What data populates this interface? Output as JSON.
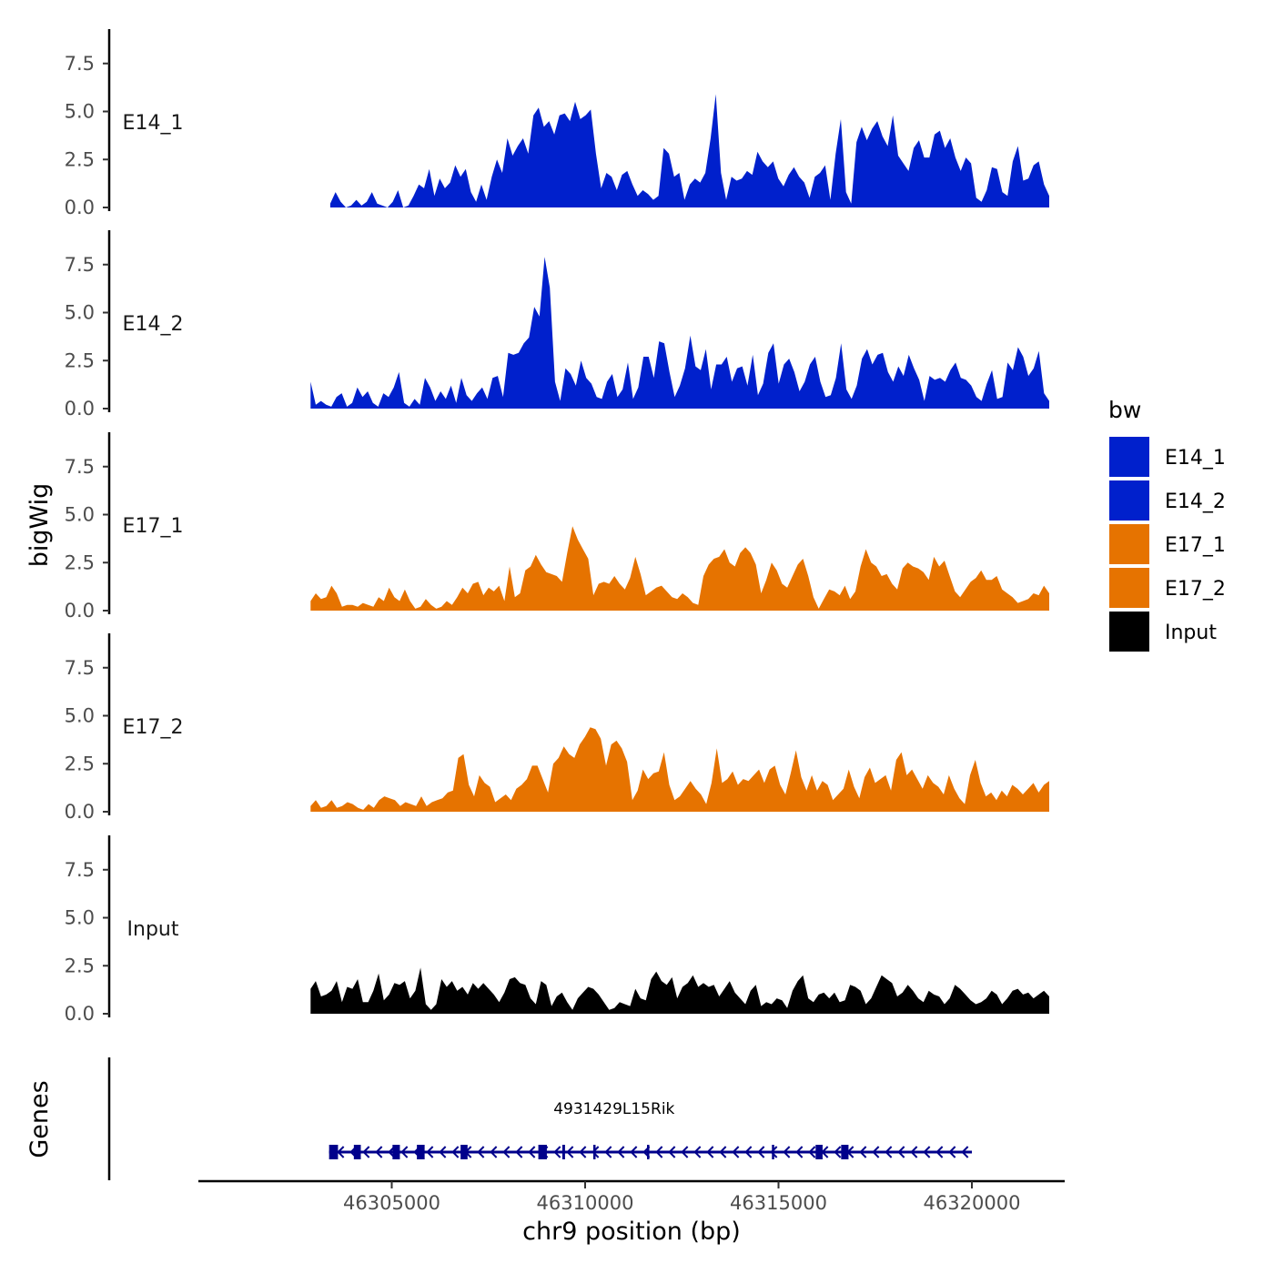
{
  "chart_data": {
    "type": "area",
    "ylabel": "bigWig",
    "xlabel": "chr9 position (bp)",
    "ylim": [
      0,
      9.4
    ],
    "y_ticks": [
      "0.0",
      "2.5",
      "5.0",
      "7.5"
    ],
    "x_ticks": [
      "46305000",
      "46310000",
      "46315000",
      "46320000"
    ],
    "x_tick_values": [
      46305000,
      46310000,
      46315000,
      46320000
    ],
    "xlim": [
      46300000,
      46322400
    ],
    "genes_label": "Genes",
    "legend": {
      "title": "bw",
      "entries": [
        {
          "label": "E14_1",
          "color": "#0020CC"
        },
        {
          "label": "E14_2",
          "color": "#0020CC"
        },
        {
          "label": "E17_1",
          "color": "#E67300"
        },
        {
          "label": "E17_2",
          "color": "#E67300"
        },
        {
          "label": "Input",
          "color": "#000000"
        }
      ]
    },
    "series": [
      {
        "name": "E14_1",
        "color": "#0020CC",
        "start": 46303410,
        "end": 46322000,
        "values": [
          0.2,
          0.8,
          0.3,
          0,
          0.1,
          0.4,
          0.1,
          0.3,
          0.8,
          0.2,
          0.1,
          0,
          0.3,
          0.9,
          0,
          0.1,
          0.6,
          1.2,
          1.0,
          2.0,
          0.6,
          1.5,
          1.0,
          1.3,
          2.2,
          1.6,
          2.0,
          0.8,
          0.3,
          1.2,
          0.4,
          1.6,
          2.5,
          1.8,
          3.6,
          2.7,
          3.2,
          3.6,
          2.8,
          4.8,
          5.2,
          4.2,
          4.5,
          3.8,
          4.8,
          4.9,
          4.5,
          5.5,
          4.6,
          4.8,
          5.1,
          2.8,
          1.0,
          1.8,
          1.6,
          0.9,
          1.7,
          1.9,
          1.2,
          0.6,
          0.9,
          0.7,
          0.4,
          0.6,
          3.1,
          2.8,
          1.6,
          1.8,
          0.4,
          1.2,
          1.5,
          1.3,
          1.8,
          3.6,
          5.9,
          1.8,
          0.4,
          1.6,
          1.4,
          1.5,
          1.9,
          1.7,
          2.9,
          2.4,
          2.1,
          2.4,
          1.5,
          1.1,
          1.7,
          2.1,
          1.6,
          1.3,
          0.5,
          1.6,
          1.8,
          2.2,
          0.4,
          2.8,
          4.6,
          0.8,
          0.2,
          3.4,
          4.2,
          3.5,
          4.1,
          4.5,
          3.7,
          3.2,
          4.8,
          2.7,
          2.3,
          1.9,
          3.1,
          3.5,
          2.6,
          2.6,
          3.8,
          4.0,
          3.1,
          3.6,
          2.6,
          1.9,
          2.6,
          2.3,
          0.5,
          0.3,
          0.9,
          2.1,
          2.0,
          0.8,
          0.6,
          2.4,
          3.2,
          1.4,
          1.5,
          2.2,
          2.4,
          1.2,
          0.6
        ]
      },
      {
        "name": "E14_2",
        "color": "#0020CC",
        "start": 46302900,
        "end": 46322000,
        "values": [
          1.4,
          0.2,
          0.4,
          0.2,
          0.1,
          0.6,
          0.8,
          0.1,
          0.3,
          1.1,
          0.6,
          0.9,
          0.3,
          0.1,
          0.8,
          0.6,
          1.1,
          1.9,
          0.3,
          0.1,
          0.5,
          0.2,
          1.6,
          1.1,
          0.4,
          0.9,
          0.5,
          1.2,
          0.3,
          1.6,
          0.7,
          0.4,
          0.8,
          1.1,
          0.5,
          1.6,
          1.7,
          0.6,
          2.9,
          2.8,
          2.9,
          3.4,
          3.7,
          5.3,
          4.8,
          7.9,
          6.3,
          1.4,
          0.4,
          2.1,
          1.8,
          1.2,
          2.5,
          1.6,
          1.3,
          0.6,
          0.5,
          1.4,
          1.8,
          0.6,
          1.0,
          2.4,
          0.5,
          1.1,
          2.7,
          2.7,
          1.6,
          3.5,
          3.4,
          1.9,
          0.6,
          1.2,
          2.1,
          3.8,
          2.2,
          2.0,
          3.1,
          1.0,
          2.3,
          2.3,
          2.7,
          1.4,
          2.1,
          2.2,
          1.2,
          2.8,
          0.7,
          1.3,
          2.9,
          3.4,
          1.3,
          2.3,
          2.6,
          1.9,
          0.9,
          1.4,
          2.3,
          2.7,
          1.4,
          0.6,
          0.7,
          1.6,
          3.4,
          1.0,
          0.5,
          1.2,
          2.6,
          3.1,
          2.3,
          2.8,
          2.9,
          1.9,
          1.4,
          2.2,
          1.7,
          2.8,
          2.1,
          1.5,
          0.4,
          1.7,
          1.5,
          1.6,
          1.4,
          2.0,
          2.4,
          1.6,
          1.5,
          1.2,
          0.6,
          0.4,
          1.3,
          2.0,
          0.5,
          0.6,
          2.4,
          2.0,
          3.2,
          2.7,
          1.7,
          2.1,
          3.0,
          0.8,
          0.4
        ]
      },
      {
        "name": "E17_1",
        "color": "#E67300",
        "start": 46302900,
        "end": 46322000,
        "values": [
          0.5,
          0.9,
          0.6,
          0.7,
          1.3,
          0.9,
          0.2,
          0.3,
          0.3,
          0.2,
          0.4,
          0.3,
          0.2,
          0.7,
          0.5,
          1.2,
          0.7,
          0.5,
          1.1,
          0.5,
          0.1,
          0.2,
          0.6,
          0.3,
          0.1,
          0.2,
          0.5,
          0.3,
          0.7,
          1.2,
          0.9,
          1.4,
          1.5,
          0.8,
          1.2,
          1.0,
          1.3,
          0.5,
          2.3,
          0.7,
          0.9,
          2.1,
          2.3,
          2.9,
          2.4,
          2.0,
          1.9,
          1.8,
          1.5,
          3.0,
          4.4,
          3.7,
          3.2,
          2.7,
          0.8,
          1.4,
          1.5,
          1.4,
          1.8,
          1.4,
          1.1,
          1.7,
          2.8,
          1.9,
          0.8,
          1.0,
          1.2,
          1.3,
          1.0,
          0.7,
          0.6,
          0.9,
          0.7,
          0.4,
          0.3,
          1.8,
          2.4,
          2.7,
          2.8,
          3.2,
          2.5,
          2.3,
          3.0,
          3.3,
          3.0,
          2.4,
          0.9,
          1.6,
          2.5,
          2.1,
          1.4,
          1.2,
          1.8,
          2.4,
          2.7,
          1.8,
          0.7,
          0.1,
          0.6,
          1.1,
          1.0,
          0.8,
          1.3,
          0.6,
          1.0,
          2.3,
          3.2,
          2.5,
          2.3,
          1.8,
          1.9,
          1.4,
          1.1,
          2.2,
          2.5,
          2.3,
          2.2,
          2.0,
          1.6,
          2.8,
          2.3,
          2.6,
          1.8,
          1.0,
          0.7,
          1.1,
          1.5,
          1.7,
          2.1,
          1.6,
          1.6,
          1.8,
          1.1,
          0.9,
          0.7,
          0.4,
          0.5,
          0.6,
          0.9,
          0.8,
          1.3,
          0.9
        ]
      },
      {
        "name": "E17_2",
        "color": "#E67300",
        "start": 46302900,
        "end": 46322000,
        "values": [
          0.3,
          0.6,
          0.2,
          0.3,
          0.6,
          0.2,
          0.3,
          0.5,
          0.4,
          0.2,
          0.1,
          0.4,
          0.2,
          0.6,
          0.8,
          0.7,
          0.6,
          0.3,
          0.5,
          0.4,
          0.3,
          0.8,
          0.3,
          0.5,
          0.6,
          0.7,
          1.0,
          1.1,
          2.8,
          3.0,
          1.4,
          0.8,
          1.9,
          1.5,
          1.3,
          0.5,
          0.7,
          0.9,
          0.6,
          1.2,
          1.4,
          1.7,
          2.4,
          2.4,
          1.7,
          1.0,
          2.5,
          2.8,
          3.4,
          3.0,
          2.8,
          3.5,
          3.9,
          4.4,
          4.3,
          3.8,
          2.4,
          3.5,
          3.7,
          3.3,
          2.6,
          0.6,
          1.1,
          2.2,
          1.7,
          2.0,
          2.1,
          3.1,
          1.4,
          0.6,
          0.8,
          1.2,
          1.6,
          1.2,
          0.9,
          0.4,
          1.5,
          3.3,
          1.5,
          1.7,
          2.1,
          1.4,
          1.7,
          1.6,
          1.9,
          2.2,
          1.5,
          2.2,
          2.4,
          1.4,
          0.9,
          2.0,
          3.2,
          1.8,
          1.1,
          1.9,
          1.1,
          1.6,
          1.4,
          0.6,
          0.9,
          1.2,
          2.2,
          1.3,
          0.7,
          1.8,
          2.3,
          1.5,
          1.7,
          1.9,
          1.1,
          2.7,
          3.1,
          1.9,
          2.2,
          1.7,
          1.2,
          1.9,
          1.5,
          1.3,
          0.9,
          1.9,
          1.2,
          0.7,
          0.4,
          1.9,
          2.7,
          1.5,
          0.8,
          1.0,
          0.6,
          1.1,
          0.8,
          1.4,
          1.2,
          0.9,
          1.2,
          1.5,
          1.0,
          1.4,
          1.6
        ]
      },
      {
        "name": "Input",
        "color": "#000000",
        "start": 46302900,
        "end": 46322000,
        "values": [
          1.3,
          1.7,
          0.9,
          1.0,
          1.2,
          1.7,
          0.6,
          1.4,
          1.3,
          1.8,
          0.6,
          0.6,
          1.2,
          2.1,
          0.7,
          1.0,
          1.6,
          1.5,
          1.7,
          0.8,
          1.2,
          2.4,
          0.5,
          0.2,
          0.5,
          1.8,
          1.4,
          1.7,
          1.2,
          1.4,
          1.0,
          1.6,
          1.3,
          1.6,
          1.3,
          1.0,
          0.6,
          1.1,
          1.8,
          1.9,
          1.6,
          1.5,
          0.8,
          0.5,
          1.7,
          1.5,
          0.4,
          0.9,
          1.1,
          0.6,
          0.2,
          0.8,
          1.1,
          1.4,
          1.3,
          1.0,
          0.6,
          0.2,
          0.3,
          0.6,
          0.5,
          0.4,
          1.3,
          0.8,
          0.7,
          1.8,
          2.2,
          1.7,
          1.5,
          1.9,
          0.8,
          1.4,
          1.6,
          2.0,
          1.4,
          1.6,
          1.4,
          1.5,
          0.9,
          1.3,
          1.7,
          1.1,
          0.8,
          0.5,
          1.2,
          1.5,
          0.4,
          0.6,
          0.5,
          0.8,
          0.7,
          0.3,
          1.2,
          1.7,
          2.0,
          0.8,
          0.6,
          1.0,
          1.1,
          0.8,
          1.1,
          0.6,
          0.7,
          1.5,
          1.4,
          1.2,
          0.5,
          0.8,
          1.4,
          2.0,
          1.8,
          1.6,
          0.9,
          1.1,
          1.5,
          1.2,
          0.8,
          0.6,
          1.2,
          1.0,
          0.9,
          0.5,
          0.8,
          1.5,
          1.3,
          1.0,
          0.7,
          0.5,
          0.6,
          0.8,
          1.2,
          1.0,
          0.5,
          0.8,
          1.2,
          1.3,
          1.0,
          1.1,
          0.8,
          1.0,
          1.2,
          0.9
        ]
      }
    ],
    "gene": {
      "name": "4931429L15Rik",
      "strand": "-",
      "color": "#00008B",
      "start": 46303380,
      "end": 46320000,
      "exons": [
        [
          46303380,
          46303610
        ],
        [
          46304020,
          46304200
        ],
        [
          46305020,
          46305210
        ],
        [
          46305650,
          46305850
        ],
        [
          46306780,
          46306960
        ],
        [
          46308790,
          46309010
        ],
        [
          46309410,
          46309480
        ],
        [
          46310210,
          46310270
        ],
        [
          46311600,
          46311660
        ],
        [
          46314830,
          46314880
        ],
        [
          46315960,
          46316140
        ],
        [
          46316620,
          46316810
        ]
      ]
    }
  }
}
